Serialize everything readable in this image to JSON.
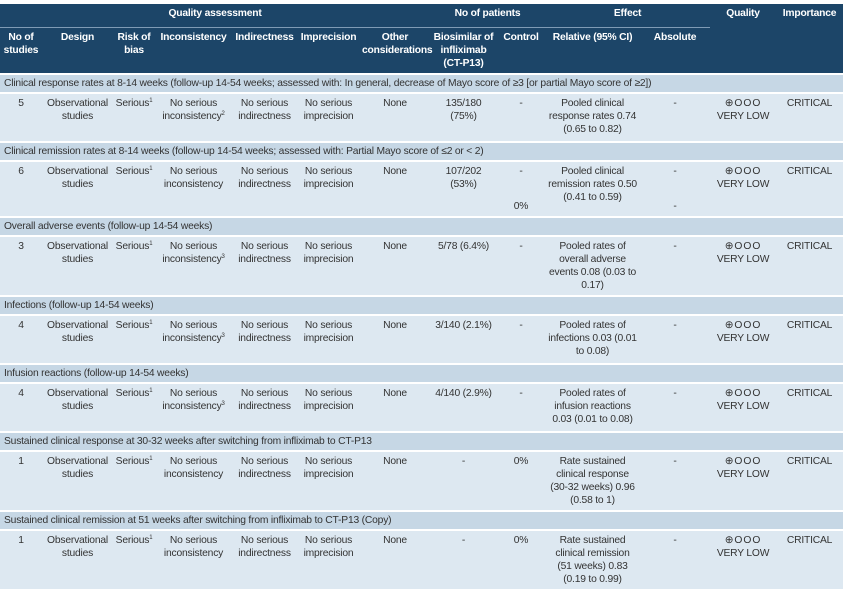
{
  "header": {
    "quality_assessment": "Quality assessment",
    "no_of_patients": "No of patients",
    "effect": "Effect",
    "quality": "Quality",
    "importance": "Importance",
    "columns": [
      "No of studies",
      "Design",
      "Risk of bias",
      "Inconsistency",
      "Indirectness",
      "Imprecision",
      "Other considerations",
      "Biosimilar of infliximab (CT-P13)",
      "Control",
      "Relative (95% CI)",
      "Absolute"
    ]
  },
  "outcomes": [
    {
      "title": "Clinical response rates at 8-14 weeks (follow-up 14-54 weeks; assessed with: In general, decrease of Mayo score of ≥3 [or partial Mayo score of ≥2])",
      "studies": "5",
      "design": "Observational studies",
      "risk": "Serious",
      "risk_sup": "1",
      "inconsistency": "No serious inconsistency",
      "inc_sup": "2",
      "indirectness": "No serious indirectness",
      "imprecision": "No serious imprecision",
      "other": "None",
      "biosimilar": "135/180 (75%)",
      "control": "-",
      "control2": "",
      "relative": "Pooled clinical response rates 0.74 (0.65 to 0.82)",
      "absolute": "-",
      "absolute2": "",
      "quality_symbols": "⊕OOO",
      "quality": "VERY LOW",
      "importance": "CRITICAL"
    },
    {
      "title": "Clinical remission rates at 8-14 weeks (follow-up 14-54 weeks; assessed with: Partial Mayo score of ≤2 or < 2)",
      "studies": "6",
      "design": "Observational studies",
      "risk": "Serious",
      "risk_sup": "1",
      "inconsistency": "No serious inconsistency",
      "inc_sup": "",
      "indirectness": "No serious indirectness",
      "imprecision": "No serious imprecision",
      "other": "None",
      "biosimilar": "107/202 (53%)",
      "control": "-",
      "control2": "0%",
      "relative": "Pooled clinical remission rates 0.50 (0.41 to 0.59)",
      "absolute": "-",
      "absolute2": "-",
      "quality_symbols": "⊕OOO",
      "quality": "VERY LOW",
      "importance": "CRITICAL"
    },
    {
      "title": "Overall adverse events (follow-up 14-54 weeks)",
      "studies": "3",
      "design": "Observational studies",
      "risk": "Serious",
      "risk_sup": "1",
      "inconsistency": "No serious inconsistency",
      "inc_sup": "3",
      "indirectness": "No serious indirectness",
      "imprecision": "No serious imprecision",
      "other": "None",
      "biosimilar": "5/78 (6.4%)",
      "control": "-",
      "control2": "",
      "relative": "Pooled rates of overall adverse events 0.08 (0.03 to 0.17)",
      "absolute": "-",
      "absolute2": "",
      "quality_symbols": "⊕OOO",
      "quality": "VERY LOW",
      "importance": "CRITICAL"
    },
    {
      "title": "Infections (follow-up 14-54 weeks)",
      "studies": "4",
      "design": "Observational studies",
      "risk": "Serious",
      "risk_sup": "1",
      "inconsistency": "No serious inconsistency",
      "inc_sup": "3",
      "indirectness": "No serious indirectness",
      "imprecision": "No serious imprecision",
      "other": "None",
      "biosimilar": "3/140 (2.1%)",
      "control": "-",
      "control2": "",
      "relative": "Pooled rates of infections 0.03 (0.01 to 0.08)",
      "absolute": "-",
      "absolute2": "",
      "quality_symbols": "⊕OOO",
      "quality": "VERY LOW",
      "importance": "CRITICAL"
    },
    {
      "title": "Infusion reactions (follow-up 14-54 weeks)",
      "studies": "4",
      "design": "Observational studies",
      "risk": "Serious",
      "risk_sup": "1",
      "inconsistency": "No serious inconsistency",
      "inc_sup": "3",
      "indirectness": "No serious indirectness",
      "imprecision": "No serious imprecision",
      "other": "None",
      "biosimilar": "4/140 (2.9%)",
      "control": "-",
      "control2": "",
      "relative": "Pooled rates of infusion reactions 0.03 (0.01 to 0.08)",
      "absolute": "-",
      "absolute2": "",
      "quality_symbols": "⊕OOO",
      "quality": "VERY LOW",
      "importance": "CRITICAL"
    },
    {
      "title": "Sustained clinical response at 30-32 weeks after switching from infliximab to CT-P13",
      "studies": "1",
      "design": "Observational studies",
      "risk": "Serious",
      "risk_sup": "1",
      "inconsistency": "No serious inconsistency",
      "inc_sup": "",
      "indirectness": "No serious indirectness",
      "imprecision": "No serious imprecision",
      "other": "None",
      "biosimilar": "-",
      "control": "0%",
      "control2": "",
      "relative": "Rate sustained clinical response (30-32 weeks) 0.96 (0.58 to 1)",
      "absolute": "-",
      "absolute2": "",
      "quality_symbols": "⊕OOO",
      "quality": "VERY LOW",
      "importance": "CRITICAL"
    },
    {
      "title": "Sustained clinical remission at 51 weeks after switching from infliximab to CT-P13 (Copy)",
      "studies": "1",
      "design": "Observational studies",
      "risk": "Serious",
      "risk_sup": "1",
      "inconsistency": "No serious inconsistency",
      "inc_sup": "",
      "indirectness": "No serious indirectness",
      "imprecision": "No serious imprecision",
      "other": "None",
      "biosimilar": "-",
      "control": "0%",
      "control2": "",
      "relative": "Rate sustained clinical remission (51 weeks) 0.83 (0.19 to 0.99)",
      "absolute": "-",
      "absolute2": "",
      "quality_symbols": "⊕OOO",
      "quality": "VERY LOW",
      "importance": "CRITICAL"
    }
  ]
}
